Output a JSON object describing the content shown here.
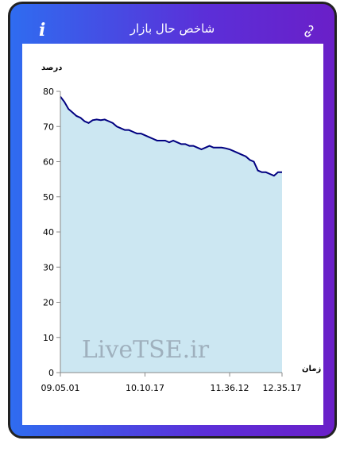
{
  "header": {
    "title": "شاخص حال بازار",
    "info_icon": "i"
  },
  "chart_data": {
    "type": "area",
    "ylabel": "درصد",
    "xlabel": "زمان",
    "watermark": "LiveTSE.ir",
    "x": [
      0,
      1,
      2,
      3,
      4,
      5,
      6,
      7,
      8,
      9,
      10,
      11,
      12,
      13,
      14,
      15,
      16,
      17,
      18,
      19,
      20,
      21,
      22,
      23,
      24,
      25,
      26,
      27,
      28,
      29,
      30,
      31,
      32,
      33,
      34,
      35,
      36,
      37,
      38,
      39,
      40,
      41,
      42,
      43,
      44,
      45,
      46,
      47,
      48,
      49,
      50,
      51,
      52,
      53,
      54,
      55
    ],
    "series": [
      {
        "color": "#000080",
        "fill": "#cce7f2",
        "values": [
          78.5,
          77,
          75,
          74,
          73,
          72.5,
          71.5,
          71,
          71.8,
          72,
          71.8,
          72,
          71.5,
          71,
          70,
          69.5,
          69,
          69,
          68.5,
          68,
          68,
          67.5,
          67,
          66.5,
          66,
          66,
          66,
          65.5,
          66,
          65.5,
          65,
          65,
          64.5,
          64.5,
          64,
          63.5,
          64,
          64.5,
          64,
          64,
          64,
          63.8,
          63.5,
          63,
          62.5,
          62,
          61.5,
          60.5,
          60,
          57.5,
          57,
          57,
          56.5,
          56,
          57,
          57
        ]
      }
    ],
    "xlim": [
      0,
      55
    ],
    "xticks": [
      {
        "value": 0,
        "label": "09.05.01"
      },
      {
        "value": 21,
        "label": "10.10.17"
      },
      {
        "value": 42,
        "label": "11.36.12"
      },
      {
        "value": 55,
        "label": "12.35.17"
      }
    ],
    "ylim": [
      0,
      80
    ],
    "yticks": [
      0,
      10,
      20,
      30,
      40,
      50,
      60,
      70,
      80
    ]
  }
}
